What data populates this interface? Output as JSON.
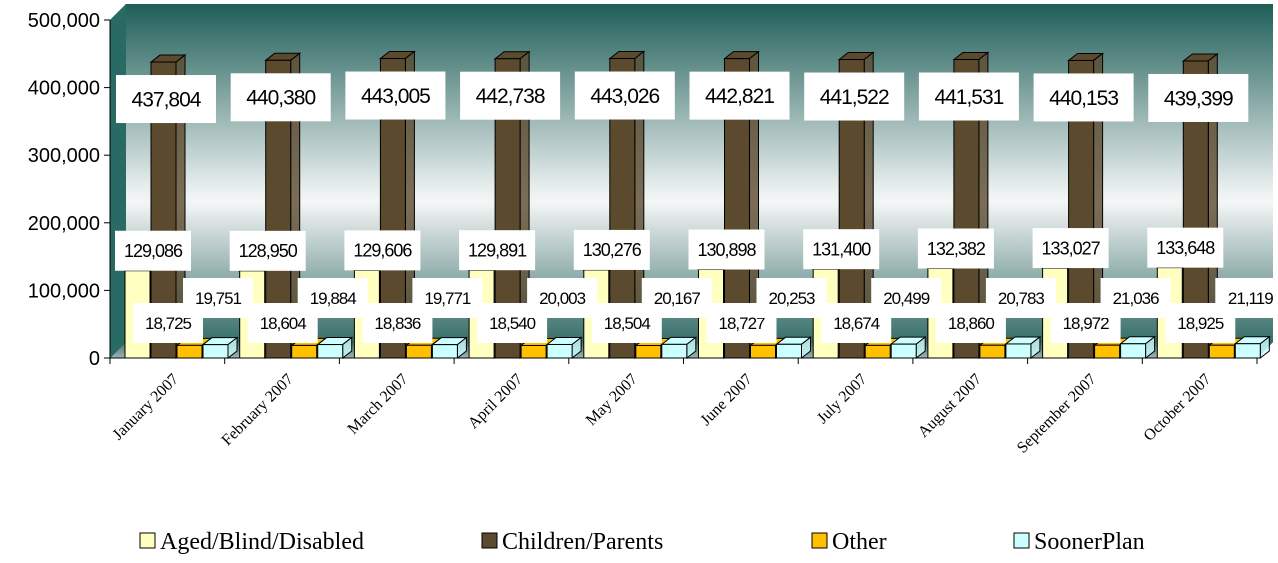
{
  "chart_data": {
    "type": "bar",
    "categories": [
      "January 2007",
      "February 2007",
      "March 2007",
      "April 2007",
      "May 2007",
      "June 2007",
      "July 2007",
      "August 2007",
      "September 2007",
      "October 2007"
    ],
    "series": [
      {
        "name": "Aged/Blind/Disabled",
        "color": "#FFFFC0",
        "values": [
          129086,
          128950,
          129606,
          129891,
          130276,
          130898,
          131400,
          132382,
          133027,
          133648
        ],
        "labels": [
          "129,086",
          "128,950",
          "129,606",
          "129,891",
          "130,276",
          "130,898",
          "131,400",
          "132,382",
          "133,027",
          "133,648"
        ]
      },
      {
        "name": "Children/Parents",
        "color": "#5C4A2E",
        "values": [
          437804,
          440380,
          443005,
          442738,
          443026,
          442821,
          441522,
          441531,
          440153,
          439399
        ],
        "labels": [
          "437,804",
          "440,380",
          "443,005",
          "442,738",
          "443,026",
          "442,821",
          "441,522",
          "441,531",
          "440,153",
          "439,399"
        ]
      },
      {
        "name": "Other",
        "color": "#FFC000",
        "values": [
          18725,
          18604,
          18836,
          18540,
          18504,
          18727,
          18674,
          18860,
          18972,
          18925
        ],
        "labels": [
          "18,725",
          "18,604",
          "18,836",
          "18,540",
          "18,504",
          "18,727",
          "18,674",
          "18,860",
          "18,972",
          "18,925"
        ]
      },
      {
        "name": "SoonerPlan",
        "color": "#CCFFFF",
        "values": [
          19751,
          19884,
          19771,
          20003,
          20167,
          20253,
          20499,
          20783,
          21036,
          21119
        ],
        "labels": [
          "19,751",
          "19,884",
          "19,771",
          "20,003",
          "20,167",
          "20,253",
          "20,499",
          "20,783",
          "21,036",
          "21,119"
        ]
      }
    ],
    "ylim": [
      0,
      500000
    ],
    "yticks": [
      "0",
      "100,000",
      "200,000",
      "300,000",
      "400,000",
      "500,000"
    ],
    "legend_position": "bottom",
    "grid": false,
    "three_d": true
  }
}
